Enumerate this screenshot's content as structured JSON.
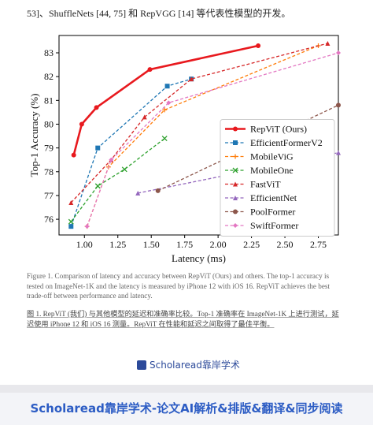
{
  "header_text": "53]、ShuffleNets [44, 75] 和 RepVGG [14] 等代表性模型的开发。",
  "chart_data": {
    "type": "line",
    "xlabel": "Latency (ms)",
    "ylabel": "Top-1 Accuracy (%)",
    "xlim": [
      0.81,
      2.9
    ],
    "ylim": [
      75.34,
      83.73
    ],
    "xticks": [
      {
        "value": 1.0,
        "label": "1.00"
      },
      {
        "value": 1.25,
        "label": "1.25"
      },
      {
        "value": 1.5,
        "label": "1.50"
      },
      {
        "value": 1.75,
        "label": "1.75"
      },
      {
        "value": 2.0,
        "label": "2.00"
      },
      {
        "value": 2.25,
        "label": "2.25"
      },
      {
        "value": 2.5,
        "label": "2.50"
      },
      {
        "value": 2.75,
        "label": "2.75"
      }
    ],
    "yticks": [
      76,
      77,
      78,
      79,
      80,
      81,
      82,
      83
    ],
    "legend": "right",
    "series": [
      {
        "name": "RepViT (Ours)",
        "color": "#e8191e",
        "linestyle": "solid",
        "marker": "circle",
        "x": [
          0.92,
          0.98,
          1.09,
          1.49,
          2.3
        ],
        "y": [
          78.7,
          80.0,
          80.7,
          82.3,
          83.3
        ]
      },
      {
        "name": "EfficientFormerV2",
        "color": "#1f77b4",
        "linestyle": "dashed",
        "marker": "square",
        "x": [
          0.9,
          1.1,
          1.62,
          1.8
        ],
        "y": [
          75.7,
          79.0,
          81.6,
          81.9
        ]
      },
      {
        "name": "MobileViG",
        "color": "#ff7f0e",
        "linestyle": "dashed",
        "marker": "plus",
        "x": [
          1.02,
          1.18,
          1.6,
          2.75
        ],
        "y": [
          75.7,
          78.2,
          80.6,
          83.3
        ]
      },
      {
        "name": "MobileOne",
        "color": "#2ca02c",
        "linestyle": "dashed",
        "marker": "x",
        "x": [
          0.9,
          1.1,
          1.3,
          1.6
        ],
        "y": [
          75.9,
          77.4,
          78.1,
          79.4
        ]
      },
      {
        "name": "FastViT",
        "color": "#d62728",
        "linestyle": "dashed",
        "marker": "triangle",
        "x": [
          0.9,
          1.2,
          1.45,
          1.8,
          2.82
        ],
        "y": [
          76.7,
          78.5,
          80.3,
          81.9,
          83.4
        ]
      },
      {
        "name": "EfficientNet",
        "color": "#9467bd",
        "linestyle": "dashed",
        "marker": "triangle",
        "x": [
          1.4,
          2.9
        ],
        "y": [
          77.1,
          78.8
        ]
      },
      {
        "name": "PoolFormer",
        "color": "#8c564b",
        "linestyle": "dashed",
        "marker": "circle",
        "x": [
          1.55,
          2.9
        ],
        "y": [
          77.2,
          80.8
        ]
      },
      {
        "name": "SwiftFormer",
        "color": "#e377c2",
        "linestyle": "dashed",
        "marker": "diamond",
        "x": [
          1.02,
          1.2,
          1.63,
          2.9
        ],
        "y": [
          75.7,
          78.5,
          80.9,
          83.0
        ]
      }
    ]
  },
  "caption_en": "Figure 1. Comparison of latency and accuracy between RepViT (Ours) and others. The top-1 accuracy is tested on ImageNet-1K and the latency is measured by iPhone 12 with iOS 16. RepViT achieves the best trade-off between performance and latency.",
  "caption_zh": "图 1. RepViT (我们) 与其他模型的延迟和准确率比较。Top-1 准确率在 ImageNet-1K 上进行测试，延迟使用 iPhone 12 和 iOS 16 测量。RepViT 在性能和延迟之间取得了最佳平衡。",
  "badge": "Scholaread靠岸学术",
  "footer": "Scholaread靠岸学术-论文AI解析&排版&翻译&同步阅读"
}
